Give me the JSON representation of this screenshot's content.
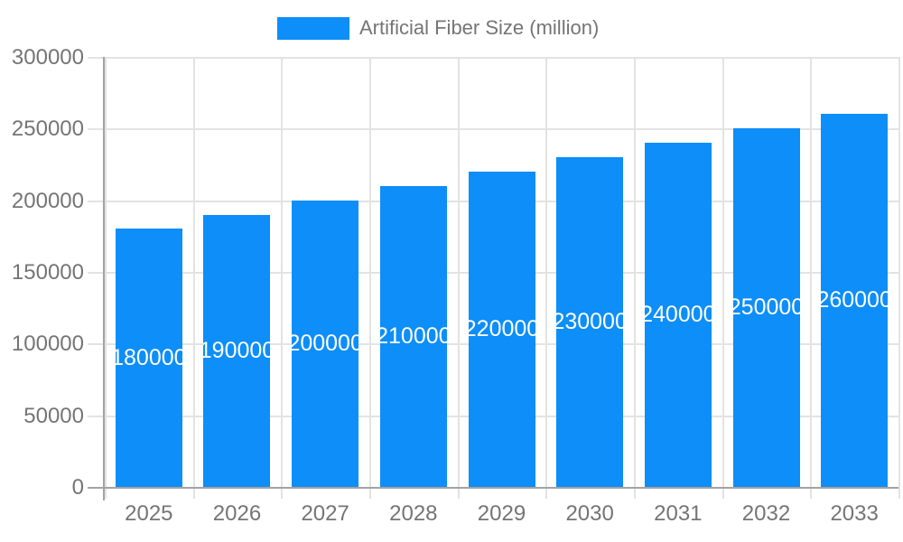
{
  "legend": {
    "label": "Artificial Fiber Size (million)"
  },
  "colors": {
    "bar": "#0d8ef8",
    "gridline": "#e3e3e3",
    "axis_line": "#a3a3a3",
    "axis_text": "#757575",
    "value_label_text": "#ffffff"
  },
  "chart_data": {
    "type": "bar",
    "title": "Artificial Fiber Size (million)",
    "categories": [
      "2025",
      "2026",
      "2027",
      "2028",
      "2029",
      "2030",
      "2031",
      "2032",
      "2033"
    ],
    "values": [
      180000,
      190000,
      200000,
      210000,
      220000,
      230000,
      240000,
      250000,
      260000
    ],
    "value_labels": [
      "180000",
      "190000",
      "200000",
      "210000",
      "220000",
      "230000",
      "240000",
      "250000",
      "260000"
    ],
    "xlabel": "",
    "ylabel": "",
    "ylim": [
      0,
      300000
    ],
    "y_ticks": [
      0,
      50000,
      100000,
      150000,
      200000,
      250000,
      300000
    ],
    "y_tick_labels": [
      "0",
      "50000",
      "100000",
      "150000",
      "200000",
      "250000",
      "300000"
    ],
    "grid": true,
    "legend_position": "top",
    "bar_label_position": "inside-center"
  }
}
